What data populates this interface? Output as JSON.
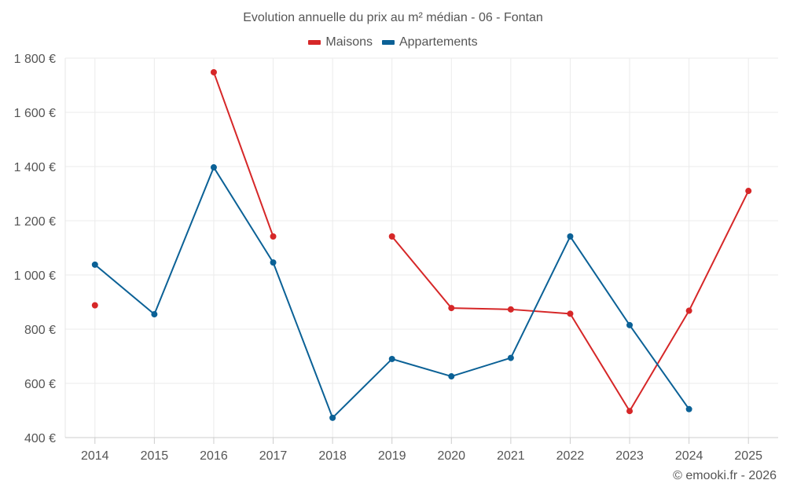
{
  "chart_data": {
    "type": "line",
    "title": "Evolution annuelle du prix au m² médian - 06 - Fontan",
    "xlabel": "",
    "ylabel": "",
    "categories": [
      "2014",
      "2015",
      "2016",
      "2017",
      "2018",
      "2019",
      "2020",
      "2021",
      "2022",
      "2023",
      "2024",
      "2025"
    ],
    "ylim": [
      400,
      1800
    ],
    "y_ticks": [
      400,
      600,
      800,
      1000,
      1200,
      1400,
      1600,
      1800
    ],
    "y_tick_labels": [
      "400 €",
      "600 €",
      "800 €",
      "1 000 €",
      "1 200 €",
      "1 400 €",
      "1 600 €",
      "1 800 €"
    ],
    "grid": true,
    "legend_position": "top-center",
    "series": [
      {
        "name": "Maisons",
        "color": "#d62728",
        "values": [
          888,
          null,
          1748,
          1142,
          null,
          1142,
          878,
          873,
          857,
          498,
          868,
          1310
        ]
      },
      {
        "name": "Appartements",
        "color": "#0b6196",
        "values": [
          1038,
          855,
          1397,
          1046,
          473,
          690,
          626,
          694,
          1142,
          815,
          505,
          null
        ]
      }
    ]
  },
  "footer": {
    "copyright": "© emooki.fr - 2026"
  }
}
